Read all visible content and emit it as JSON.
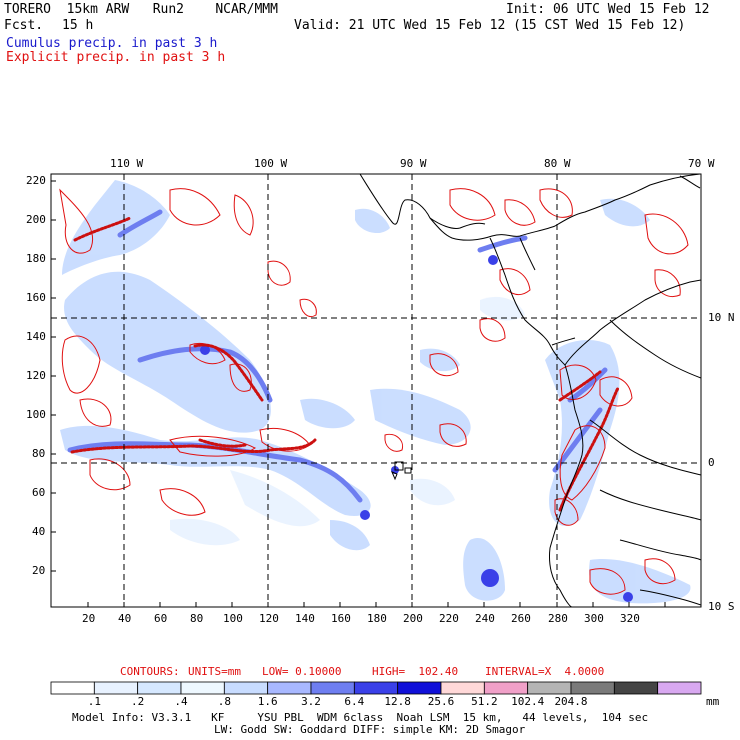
{
  "header": {
    "model": "TORERO  15km ARW   Run2    NCAR/MMM",
    "fcst_label": "Fcst.",
    "fcst_value": "15 h",
    "init": "Init: 06 UTC Wed 15 Feb 12",
    "valid": "Valid: 21 UTC Wed 15 Feb 12 (15 CST Wed 15 Feb 12)",
    "field1": "Cumulus precip. in past 3 h",
    "field2": "Explicit precip. in past 3 h"
  },
  "top_axis": [
    "110 W",
    "100 W",
    "90 W",
    "80 W",
    "70 W"
  ],
  "left_axis": [
    "220",
    "200",
    "180",
    "160",
    "140",
    "120",
    "100",
    "80",
    "60",
    "40",
    "20"
  ],
  "bottom_axis": [
    "20",
    "40",
    "60",
    "80",
    "100",
    "120",
    "140",
    "160",
    "180",
    "200",
    "220",
    "240",
    "260",
    "280",
    "300",
    "320"
  ],
  "right_axis": [
    "10 N",
    "0",
    "10 S"
  ],
  "contour_info": {
    "contours": "CONTOURS:",
    "units": "UNITS=mm",
    "low": "LOW= 0.10000",
    "high": "HIGH=  102.40",
    "interval": "INTERVAL=X  4.0000"
  },
  "colorbar": {
    "labels": [
      ".1",
      ".2",
      ".4",
      ".8",
      "1.6",
      "3.2",
      "6.4",
      "12.8",
      "25.6",
      "51.2",
      "102.4",
      "204.8"
    ],
    "unit": "mm",
    "colors": [
      "#ffffff",
      "#e8f2ff",
      "#d6e8ff",
      "#eef8ff",
      "#c8dcff",
      "#a8b8ff",
      "#6e7ef0",
      "#3a40e8",
      "#1010d8",
      "#ffd8d8",
      "#f0a0c8",
      "#b4b4b4",
      "#7a7a7a",
      "#444444",
      "#d8a8f0"
    ]
  },
  "footer": {
    "line1": "Model Info: V3.3.1   KF     YSU PBL  WDM 6class  Noah LSM  15 km,   44 levels,  104 sec",
    "line2": "LW: Godd SW: Goddard DIFF: simple KM: 2D Smagor"
  }
}
